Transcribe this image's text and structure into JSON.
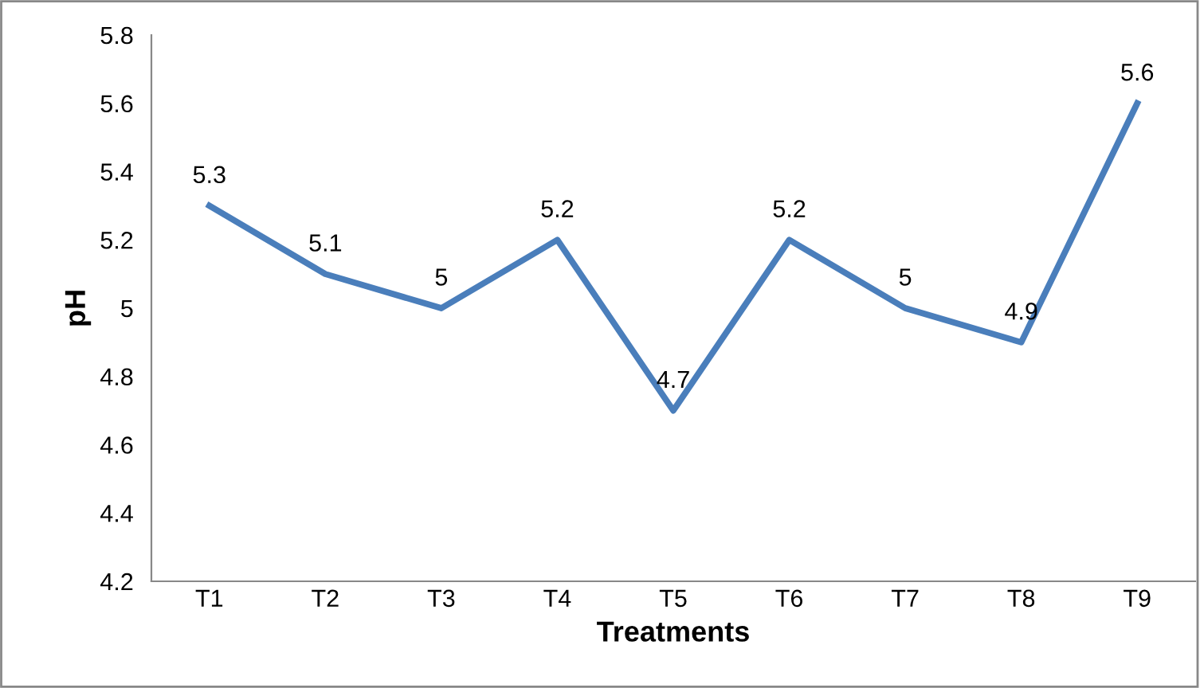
{
  "chart_data": {
    "type": "line",
    "xlabel": "Treatments",
    "ylabel": "pH",
    "categories": [
      "T1",
      "T2",
      "T3",
      "T4",
      "T5",
      "T6",
      "T7",
      "T8",
      "T9"
    ],
    "series": [
      {
        "color": "#4a7ebb",
        "values": [
          5.3,
          5.1,
          5,
          5.2,
          4.7,
          5.2,
          5,
          4.9,
          5.6
        ]
      }
    ],
    "ylim": [
      4.2,
      5.8
    ],
    "yticks": [
      4.2,
      4.4,
      4.6,
      4.8,
      5,
      5.2,
      5.4,
      5.6,
      5.8
    ],
    "data_labels": true,
    "marker": "none",
    "line_style": "solid",
    "grid": false,
    "legend": false
  }
}
